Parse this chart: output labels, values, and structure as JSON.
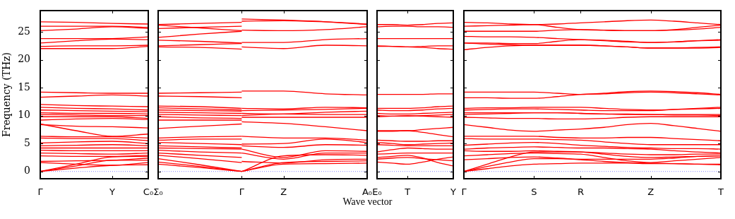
{
  "chart_data": [
    {
      "type": "line",
      "ylabel": "Frequency (THz)",
      "color": "#ff0000",
      "grid": false,
      "legend": false,
      "marker": "none",
      "line_style": "solid",
      "ylim": [
        -1.3,
        28.8
      ],
      "yticks": [
        0,
        5,
        10,
        15,
        20,
        25
      ],
      "categories": [
        "Γ",
        null,
        "Y",
        "C₀"
      ],
      "ref_lines": [
        {
          "axis": "y",
          "value": 0,
          "label": null,
          "color": "#8080ff",
          "line_style": "dotted"
        }
      ],
      "series": [
        {
          "values": [
            26.8,
            26.7,
            26.5,
            26.4
          ]
        },
        {
          "values": [
            26.0,
            26.0,
            26.0,
            25.8
          ]
        },
        {
          "values": [
            25.2,
            25.5,
            25.9,
            25.6
          ]
        },
        {
          "values": [
            23.8,
            23.8,
            23.8,
            24.1
          ]
        },
        {
          "values": [
            23.0,
            23.4,
            23.7,
            23.6
          ]
        },
        {
          "values": [
            22.4,
            22.5,
            22.5,
            22.6
          ]
        },
        {
          "values": [
            22.0,
            22.0,
            22.0,
            22.4
          ]
        },
        {
          "values": [
            14.2,
            14.1,
            14.0,
            14.0
          ]
        },
        {
          "values": [
            13.3,
            13.5,
            13.7,
            13.5
          ]
        },
        {
          "values": [
            12.0,
            11.8,
            11.7,
            11.6
          ]
        },
        {
          "values": [
            11.5,
            11.3,
            11.2,
            11.0
          ]
        },
        {
          "values": [
            11.0,
            10.9,
            10.8,
            10.7
          ]
        },
        {
          "values": [
            10.5,
            10.4,
            10.4,
            10.3
          ]
        },
        {
          "values": [
            10.2,
            10.1,
            10.0,
            10.0
          ]
        },
        {
          "values": [
            9.8,
            9.8,
            9.8,
            9.5
          ]
        },
        {
          "values": [
            9.2,
            9.4,
            9.5,
            9.3
          ]
        },
        {
          "values": [
            8.5,
            7.3,
            6.3,
            6.7
          ]
        },
        {
          "values": [
            8.4,
            8.1,
            8.0,
            7.8
          ]
        },
        {
          "values": [
            6.3,
            6.2,
            6.2,
            6.0
          ]
        },
        {
          "values": [
            6.0,
            5.9,
            5.9,
            5.5
          ]
        },
        {
          "values": [
            5.1,
            5.3,
            5.4,
            5.0
          ]
        },
        {
          "values": [
            4.6,
            4.7,
            4.8,
            4.6
          ]
        },
        {
          "values": [
            4.2,
            4.2,
            4.2,
            4.2
          ]
        },
        {
          "values": [
            3.8,
            3.7,
            3.7,
            3.7
          ]
        },
        {
          "values": [
            3.3,
            3.2,
            3.1,
            3.3
          ]
        },
        {
          "values": [
            2.8,
            2.7,
            2.7,
            2.9
          ]
        },
        {
          "values": [
            1.8,
            1.9,
            2.0,
            2.4
          ]
        },
        {
          "values": [
            1.6,
            1.3,
            1.1,
            1.6
          ]
        },
        {
          "values": [
            0,
            1.3,
            2.6,
            2.7
          ]
        },
        {
          "values": [
            0,
            1.0,
            2.0,
            2.0
          ]
        },
        {
          "values": [
            0,
            0.6,
            1.1,
            1.2
          ]
        }
      ]
    },
    {
      "type": "line",
      "color": "#ff0000",
      "grid": false,
      "legend": false,
      "marker": "none",
      "line_style": "solid",
      "tick_labels": "x",
      "ylim": [
        -1.3,
        28.8
      ],
      "yticks": [
        0,
        5,
        10,
        15,
        20,
        25
      ],
      "categories": [
        "Σ₀",
        null,
        "Γ",
        "Z",
        null,
        "A₀"
      ],
      "ref_lines": [
        {
          "axis": "y",
          "value": 0,
          "label": null,
          "color": "#8080ff",
          "line_style": "dotted"
        }
      ],
      "series": [
        {
          "values": [
            26.3,
            26.5,
            26.7,
            null,
            null,
            null
          ]
        },
        {
          "values": [
            26.2,
            25.7,
            25.2,
            null,
            null,
            null
          ]
        },
        {
          "values": [
            25.6,
            25.8,
            26.0,
            null,
            null,
            null
          ]
        },
        {
          "values": [
            24.0,
            24.6,
            25.1,
            null,
            null,
            null
          ]
        },
        {
          "values": [
            23.5,
            23.3,
            23.0,
            null,
            null,
            null
          ]
        },
        {
          "values": [
            22.5,
            22.7,
            22.9,
            null,
            null,
            null
          ]
        },
        {
          "values": [
            22.3,
            22.2,
            21.9,
            null,
            null,
            null
          ]
        },
        {
          "values": [
            14.0,
            14.1,
            14.2,
            null,
            null,
            null
          ]
        },
        {
          "values": [
            13.5,
            13.4,
            13.2,
            null,
            null,
            null
          ]
        },
        {
          "values": [
            11.7,
            11.6,
            11.3,
            null,
            null,
            null
          ]
        },
        {
          "values": [
            11.4,
            11.2,
            11.0,
            null,
            null,
            null
          ]
        },
        {
          "values": [
            11.0,
            10.9,
            10.8,
            null,
            null,
            null
          ]
        },
        {
          "values": [
            10.6,
            10.5,
            10.4,
            null,
            null,
            null
          ]
        },
        {
          "values": [
            10.2,
            10.1,
            10.0,
            null,
            null,
            null
          ]
        },
        {
          "values": [
            9.8,
            9.6,
            9.5,
            null,
            null,
            null
          ]
        },
        {
          "values": [
            9.2,
            9.2,
            9.2,
            null,
            null,
            null
          ]
        },
        {
          "values": [
            7.7,
            8.1,
            8.5,
            null,
            null,
            null
          ]
        },
        {
          "values": [
            6.0,
            6.2,
            6.3,
            null,
            null,
            null
          ]
        },
        {
          "values": [
            5.6,
            5.8,
            5.8,
            null,
            null,
            null
          ]
        },
        {
          "values": [
            5.2,
            5.0,
            4.8,
            null,
            null,
            null
          ]
        },
        {
          "values": [
            4.6,
            4.4,
            4.2,
            null,
            null,
            null
          ]
        },
        {
          "values": [
            4.2,
            4.1,
            4.0,
            null,
            null,
            null
          ]
        },
        {
          "values": [
            3.8,
            3.5,
            3.3,
            null,
            null,
            null
          ]
        },
        {
          "values": [
            3.3,
            2.9,
            2.5,
            null,
            null,
            null
          ]
        },
        {
          "values": [
            2.9,
            2.3,
            1.6,
            null,
            null,
            null
          ]
        },
        {
          "values": [
            2.3,
            1.2,
            0,
            null,
            null,
            null
          ]
        },
        {
          "values": [
            1.7,
            0.9,
            0,
            null,
            null,
            null
          ]
        },
        {
          "values": [
            1.3,
            0.7,
            0,
            null,
            null,
            null
          ]
        },
        {
          "values": [
            null,
            null,
            27.3,
            27.1,
            26.8,
            26.3
          ]
        },
        {
          "values": [
            null,
            null,
            26.9,
            27.0,
            26.8,
            26.4
          ]
        },
        {
          "values": [
            null,
            null,
            25.3,
            25.2,
            25.4,
            25.9
          ]
        },
        {
          "values": [
            null,
            null,
            23.1,
            23.1,
            23.6,
            23.8
          ]
        },
        {
          "values": [
            null,
            null,
            22.3,
            22.0,
            22.6,
            22.5
          ]
        },
        {
          "values": [
            null,
            null,
            14.4,
            14.4,
            13.9,
            13.7
          ]
        },
        {
          "values": [
            null,
            null,
            11.3,
            11.2,
            11.5,
            11.4
          ]
        },
        {
          "values": [
            null,
            null,
            10.9,
            11.0,
            11.1,
            11.3
          ]
        },
        {
          "values": [
            null,
            null,
            10.4,
            10.3,
            10.6,
            10.8
          ]
        },
        {
          "values": [
            null,
            null,
            10.0,
            10.3,
            10.2,
            10.2
          ]
        },
        {
          "values": [
            null,
            null,
            9.7,
            9.7,
            9.7,
            9.7
          ]
        },
        {
          "values": [
            null,
            null,
            8.9,
            8.6,
            8.0,
            7.3
          ]
        },
        {
          "values": [
            null,
            null,
            6.3,
            6.0,
            6.0,
            5.6
          ]
        },
        {
          "values": [
            null,
            null,
            4.9,
            5.0,
            5.8,
            5.2
          ]
        },
        {
          "values": [
            null,
            null,
            4.6,
            4.3,
            4.8,
            4.7
          ]
        },
        {
          "values": [
            null,
            null,
            4.0,
            2.5,
            3.7,
            3.6
          ]
        },
        {
          "values": [
            null,
            null,
            3.3,
            2.2,
            3.3,
            3.3
          ]
        },
        {
          "values": [
            null,
            null,
            1.8,
            1.5,
            2.1,
            2.2
          ]
        },
        {
          "values": [
            null,
            null,
            0,
            2.8,
            3.0,
            2.9
          ]
        },
        {
          "values": [
            null,
            null,
            0,
            1.6,
            1.8,
            1.9
          ]
        },
        {
          "values": [
            null,
            null,
            0,
            1.3,
            1.4,
            1.5
          ]
        }
      ]
    },
    {
      "type": "line",
      "xlabel": "Wave vector",
      "color": "#ff0000",
      "grid": false,
      "legend": false,
      "marker": "none",
      "line_style": "solid",
      "tick_labels": "x",
      "ylim": [
        -1.3,
        28.8
      ],
      "yticks": [
        0,
        5,
        10,
        15,
        20,
        25
      ],
      "categories": [
        "E₀",
        null,
        "T",
        null,
        null,
        "Y"
      ],
      "ref_lines": [
        {
          "axis": "y",
          "value": 0,
          "label": null,
          "color": "#8080ff",
          "line_style": "dotted"
        }
      ],
      "series": [
        {
          "values": [
            26.3,
            26.3,
            26.2,
            26.3,
            26.5,
            26.6
          ]
        },
        {
          "values": [
            25.9,
            26.0,
            26.0,
            25.9,
            25.9,
            25.8
          ]
        },
        {
          "values": [
            23.8,
            23.8,
            23.8,
            23.8,
            23.8,
            23.8
          ]
        },
        {
          "values": [
            22.5,
            22.4,
            22.3,
            22.4,
            22.5,
            22.5
          ]
        },
        {
          "values": [
            22.4,
            22.4,
            22.3,
            22.2,
            22.0,
            21.9
          ]
        },
        {
          "values": [
            13.8,
            13.8,
            13.8,
            13.8,
            13.9,
            13.9
          ]
        },
        {
          "values": [
            11.3,
            11.3,
            11.3,
            11.4,
            11.6,
            11.7
          ]
        },
        {
          "values": [
            11.0,
            10.9,
            10.9,
            11.0,
            11.2,
            11.3
          ]
        },
        {
          "values": [
            10.4,
            10.3,
            10.3,
            10.4,
            10.5,
            10.6
          ]
        },
        {
          "values": [
            10.0,
            9.9,
            9.9,
            10.0,
            10.1,
            10.2
          ]
        },
        {
          "values": [
            9.8,
            9.9,
            10.0,
            9.9,
            9.8,
            9.7
          ]
        },
        {
          "values": [
            7.3,
            7.3,
            7.3,
            7.5,
            7.7,
            7.9
          ]
        },
        {
          "values": [
            7.2,
            7.2,
            7.3,
            7.0,
            6.6,
            6.2
          ]
        },
        {
          "values": [
            5.6,
            5.5,
            5.4,
            5.4,
            5.5,
            5.5
          ]
        },
        {
          "values": [
            5.2,
            5.0,
            4.8,
            4.9,
            5.0,
            5.1
          ]
        },
        {
          "values": [
            4.8,
            4.7,
            4.6,
            4.6,
            4.6,
            4.6
          ]
        },
        {
          "values": [
            3.5,
            3.9,
            4.2,
            4.1,
            4.0,
            4.0
          ]
        },
        {
          "values": [
            3.1,
            3.2,
            3.3,
            3.3,
            3.3,
            3.3
          ]
        },
        {
          "values": [
            2.5,
            2.7,
            2.9,
            2.4,
            1.6,
            1.0
          ]
        },
        {
          "values": [
            2.2,
            2.4,
            2.5,
            2.3,
            2.1,
            1.9
          ]
        },
        {
          "values": [
            1.7,
            1.5,
            1.3,
            1.7,
            2.2,
            2.6
          ]
        }
      ]
    },
    {
      "type": "line",
      "color": "#ff0000",
      "grid": false,
      "legend": false,
      "marker": "none",
      "line_style": "solid",
      "tick_labels": "x",
      "ylim": [
        -1.3,
        28.8
      ],
      "yticks": [
        0,
        5,
        10,
        15,
        20,
        25
      ],
      "categories": [
        "Γ",
        null,
        null,
        "S",
        null,
        "R",
        null,
        null,
        "Z",
        null,
        null,
        "T"
      ],
      "ref_lines": [
        {
          "axis": "y",
          "value": 0,
          "label": null,
          "color": "#8080ff",
          "line_style": "dotted"
        }
      ],
      "series": [
        {
          "values": [
            26.7,
            26.6,
            26.4,
            26.3,
            26.4,
            26.6,
            26.8,
            27.0,
            27.1,
            26.9,
            26.6,
            26.3
          ]
        },
        {
          "values": [
            26.0,
            26.1,
            26.2,
            26.3,
            25.8,
            25.4,
            25.3,
            25.2,
            25.2,
            25.4,
            25.8,
            26.2
          ]
        },
        {
          "values": [
            25.1,
            25.1,
            25.1,
            25.1,
            25.3,
            25.4,
            25.3,
            25.2,
            25.2,
            25.3,
            25.5,
            25.8
          ]
        },
        {
          "values": [
            24.2,
            24.1,
            24.1,
            24.0,
            23.8,
            23.6,
            23.4,
            23.2,
            23.1,
            23.2,
            23.4,
            23.6
          ]
        },
        {
          "values": [
            23.0,
            23.0,
            22.9,
            22.9,
            23.3,
            23.6,
            23.5,
            23.3,
            23.1,
            23.2,
            23.4,
            23.5
          ]
        },
        {
          "values": [
            23.0,
            22.8,
            22.7,
            22.6,
            22.6,
            22.6,
            22.5,
            22.3,
            22.1,
            22.1,
            22.1,
            22.2
          ]
        },
        {
          "values": [
            21.8,
            22.2,
            22.5,
            22.6,
            22.6,
            22.6,
            22.5,
            22.3,
            22.1,
            22.1,
            22.2,
            22.3
          ]
        },
        {
          "values": [
            14.2,
            14.2,
            14.2,
            14.2,
            14.0,
            13.8,
            14.0,
            14.3,
            14.4,
            14.3,
            14.1,
            13.8
          ]
        },
        {
          "values": [
            13.2,
            13.2,
            13.1,
            13.1,
            13.4,
            13.8,
            13.9,
            14.1,
            14.2,
            14.1,
            13.9,
            13.7
          ]
        },
        {
          "values": [
            11.3,
            11.4,
            11.4,
            11.5,
            11.5,
            11.5,
            11.3,
            11.1,
            11.0,
            11.1,
            11.2,
            11.3
          ]
        },
        {
          "values": [
            11.0,
            11.1,
            11.2,
            11.2,
            11.1,
            11.0,
            10.9,
            10.9,
            10.9,
            11.1,
            11.3,
            11.5
          ]
        },
        {
          "values": [
            10.5,
            10.5,
            10.5,
            10.5,
            10.5,
            10.4,
            10.3,
            10.2,
            10.2,
            10.1,
            10.1,
            10.0
          ]
        },
        {
          "values": [
            10.2,
            10.3,
            10.4,
            10.5,
            10.5,
            10.4,
            10.3,
            10.3,
            10.2,
            10.2,
            10.2,
            10.2
          ]
        },
        {
          "values": [
            9.7,
            9.6,
            9.5,
            9.5,
            9.4,
            9.4,
            9.5,
            9.7,
            9.8,
            9.8,
            9.8,
            9.8
          ]
        },
        {
          "values": [
            8.4,
            7.9,
            7.4,
            7.2,
            7.4,
            7.6,
            7.9,
            8.4,
            8.6,
            8.2,
            7.7,
            7.2
          ]
        },
        {
          "values": [
            6.3,
            6.3,
            6.3,
            6.3,
            6.1,
            6.0,
            6.0,
            6.1,
            6.1,
            5.9,
            5.7,
            5.5
          ]
        },
        {
          "values": [
            5.9,
            5.8,
            5.8,
            5.8,
            5.7,
            5.6,
            5.3,
            5.0,
            4.8,
            4.8,
            4.8,
            4.8
          ]
        },
        {
          "values": [
            4.7,
            4.9,
            5.1,
            5.2,
            5.0,
            4.7,
            4.5,
            4.3,
            4.2,
            4.1,
            4.1,
            4.0
          ]
        },
        {
          "values": [
            4.0,
            4.2,
            4.3,
            4.4,
            4.3,
            4.2,
            4.2,
            4.1,
            4.0,
            3.7,
            3.5,
            3.3
          ]
        },
        {
          "values": [
            3.7,
            3.6,
            3.6,
            3.7,
            3.6,
            3.5,
            3.1,
            2.7,
            2.5,
            2.6,
            2.7,
            2.8
          ]
        },
        {
          "values": [
            2.8,
            3.0,
            3.2,
            3.3,
            3.2,
            3.1,
            2.5,
            1.9,
            1.6,
            1.9,
            2.2,
            2.5
          ]
        },
        {
          "values": [
            2.1,
            2.3,
            2.5,
            2.6,
            2.4,
            2.1,
            1.8,
            1.6,
            1.5,
            1.4,
            1.3,
            1.3
          ]
        },
        {
          "values": [
            0,
            1.3,
            2.6,
            3.5,
            3.5,
            3.5,
            3.3,
            3.1,
            3.0,
            3.0,
            3.1,
            3.1
          ]
        },
        {
          "values": [
            0,
            0.9,
            1.7,
            2.3,
            2.3,
            2.2,
            2.2,
            2.2,
            2.2,
            2.4,
            2.7,
            2.8
          ]
        },
        {
          "values": [
            0,
            0.5,
            1.0,
            1.3,
            1.4,
            1.5,
            1.5,
            1.5,
            1.4,
            1.4,
            1.3,
            1.2
          ]
        }
      ]
    }
  ]
}
